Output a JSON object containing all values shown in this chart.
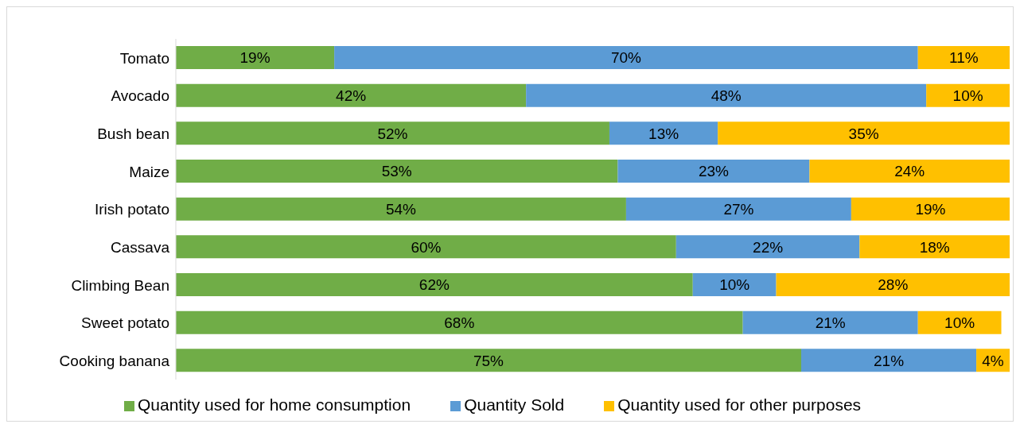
{
  "chart_data": {
    "type": "bar",
    "orientation": "horizontal",
    "stacked": true,
    "legend": "bottom",
    "grid": false,
    "tick_labels": "y",
    "categories": [
      "Tomato",
      "Avocado",
      "Bush bean",
      "Maize",
      "Irish potato",
      "Cassava",
      "Climbing Bean",
      "Sweet potato",
      "Cooking banana"
    ],
    "series": [
      {
        "name": "Quantity used for home consumption",
        "color": "#70ad47",
        "values": [
          19,
          42,
          52,
          53,
          54,
          60,
          62,
          68,
          75
        ],
        "value_labels": [
          "19%",
          "42%",
          "52%",
          "53%",
          "54%",
          "60%",
          "62%",
          "68%",
          "75%"
        ]
      },
      {
        "name": "Quantity  Sold",
        "color": "#5b9bd5",
        "values": [
          70,
          48,
          13,
          23,
          27,
          22,
          10,
          21,
          21
        ],
        "value_labels": [
          "70%",
          "48%",
          "13%",
          "23%",
          "27%",
          "22%",
          "10%",
          "21%",
          "21%"
        ]
      },
      {
        "name": "Quantity used for other purposes",
        "color": "#ffc000",
        "values": [
          11,
          10,
          35,
          24,
          19,
          18,
          28,
          10,
          4
        ],
        "value_labels": [
          "11%",
          "10%",
          "35%",
          "24%",
          "19%",
          "18%",
          "28%",
          "10%",
          "4%"
        ]
      }
    ]
  }
}
